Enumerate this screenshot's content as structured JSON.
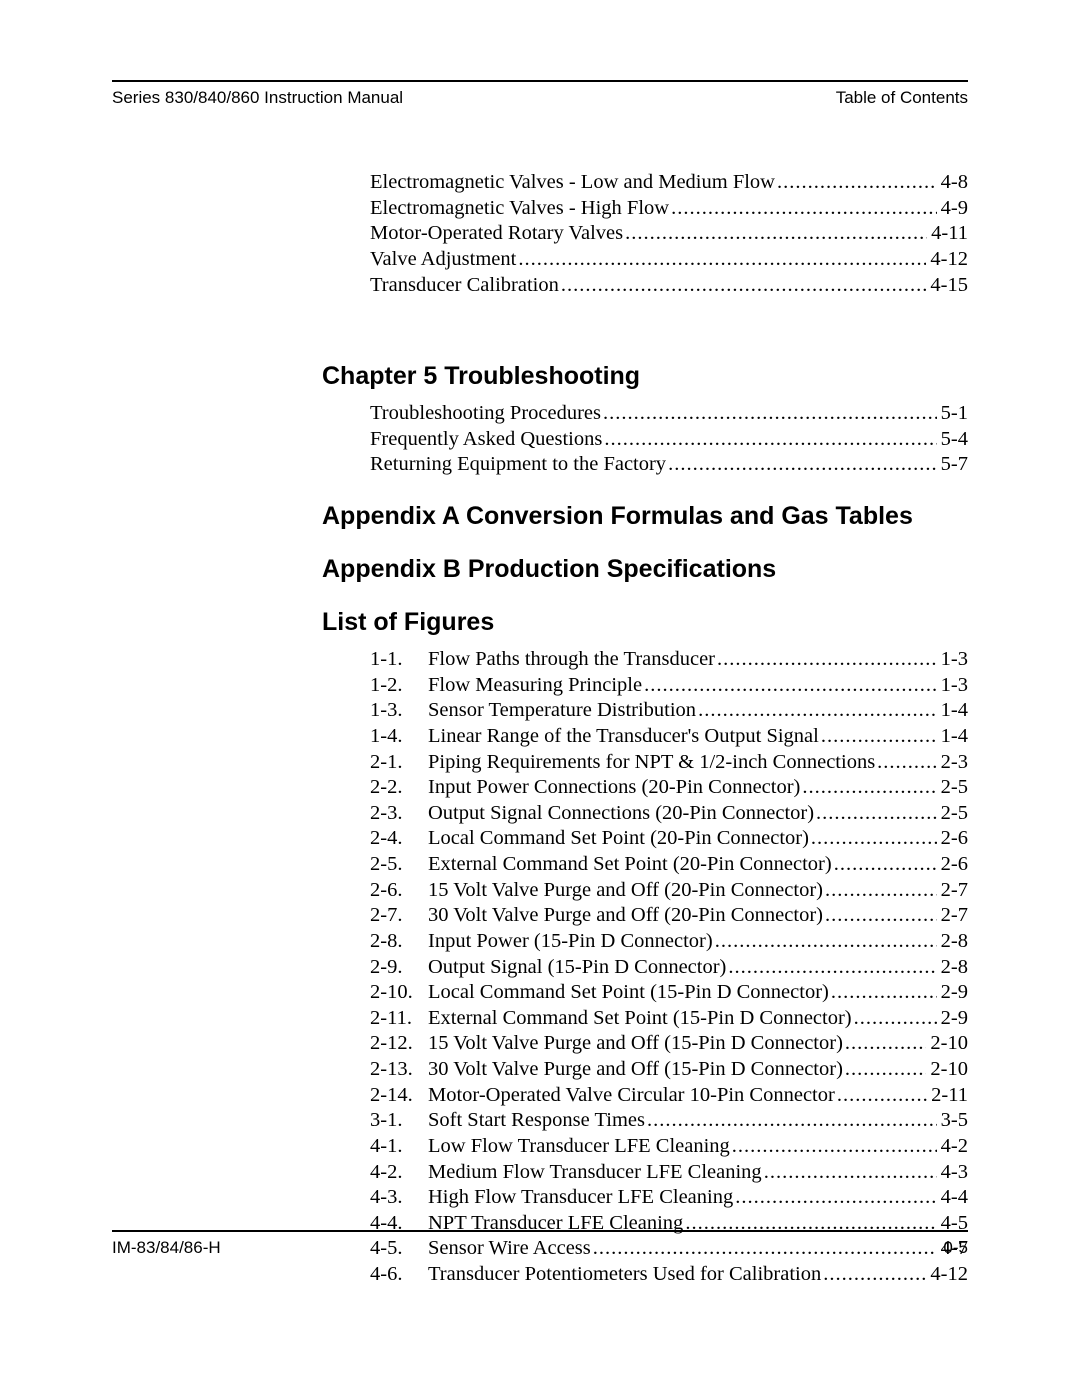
{
  "header": {
    "left": "Series 830/840/860 Instruction Manual",
    "right": "Table of Contents"
  },
  "footer": {
    "left": "IM-83/84/86-H",
    "right": "0-5"
  },
  "topEntries": [
    {
      "label": "Electromagnetic Valves - Low and Medium Flow",
      "page": "4-8"
    },
    {
      "label": "Electromagnetic Valves - High Flow",
      "page": "4-9"
    },
    {
      "label": "Motor-Operated Rotary Valves",
      "page": "4-11"
    },
    {
      "label": "Valve Adjustment",
      "page": "4-12"
    },
    {
      "label": "Transducer Calibration",
      "page": "4-15"
    }
  ],
  "chapter5": {
    "title": "Chapter 5  Troubleshooting",
    "entries": [
      {
        "label": "Troubleshooting Procedures",
        "page": "5-1"
      },
      {
        "label": "Frequently Asked Questions",
        "page": "5-4"
      },
      {
        "label": "Returning Equipment to the Factory",
        "page": "5-7"
      }
    ]
  },
  "appendixA": "Appendix A  Conversion Formulas and Gas Tables",
  "appendixB": "Appendix B  Production Specifications",
  "listOfFigures": {
    "title": "List of Figures",
    "entries": [
      {
        "num": "1-1.",
        "label": "Flow Paths through the Transducer",
        "page": "1-3"
      },
      {
        "num": "1-2.",
        "label": "Flow Measuring Principle",
        "page": "1-3"
      },
      {
        "num": "1-3.",
        "label": "Sensor Temperature Distribution",
        "page": "1-4"
      },
      {
        "num": "1-4.",
        "label": "Linear Range of the Transducer's Output Signal",
        "page": "1-4"
      },
      {
        "num": "2-1.",
        "label": "Piping Requirements for NPT & 1/2-inch Connections",
        "page": "2-3"
      },
      {
        "num": "2-2.",
        "label": "Input Power Connections (20-Pin Connector)",
        "page": "2-5"
      },
      {
        "num": "2-3.",
        "label": "Output Signal Connections (20-Pin Connector)",
        "page": "2-5"
      },
      {
        "num": "2-4.",
        "label": "Local Command Set Point (20-Pin Connector)",
        "page": "2-6"
      },
      {
        "num": "2-5.",
        "label": "External Command Set Point (20-Pin Connector)",
        "page": "2-6"
      },
      {
        "num": "2-6.",
        "label": "15 Volt Valve Purge and Off (20-Pin Connector)",
        "page": "2-7"
      },
      {
        "num": "2-7.",
        "label": "30 Volt Valve Purge and Off (20-Pin Connector)",
        "page": "2-7"
      },
      {
        "num": "2-8.",
        "label": "Input Power (15-Pin D Connector)",
        "page": "2-8"
      },
      {
        "num": "2-9.",
        "label": "Output Signal (15-Pin D Connector)",
        "page": "2-8"
      },
      {
        "num": "2-10.",
        "label": "Local Command Set Point (15-Pin D Connector)",
        "page": "2-9"
      },
      {
        "num": "2-11.",
        "label": "External Command Set Point (15-Pin D Connector)",
        "page": "2-9"
      },
      {
        "num": "2-12.",
        "label": "15 Volt Valve Purge and Off (15-Pin D Connector)",
        "page": "2-10"
      },
      {
        "num": "2-13.",
        "label": "30 Volt Valve Purge and Off (15-Pin D Connector)",
        "page": "2-10"
      },
      {
        "num": "2-14.",
        "label": "Motor-Operated Valve Circular 10-Pin Connector",
        "page": "2-11"
      },
      {
        "num": "3-1.",
        "label": "Soft Start Response Times",
        "page": "3-5"
      },
      {
        "num": "4-1.",
        "label": "Low Flow Transducer LFE Cleaning",
        "page": "4-2"
      },
      {
        "num": "4-2.",
        "label": "Medium Flow Transducer LFE Cleaning",
        "page": "4-3"
      },
      {
        "num": "4-3.",
        "label": "High Flow Transducer LFE Cleaning",
        "page": "4-4"
      },
      {
        "num": "4-4.",
        "label": "NPT Transducer LFE Cleaning",
        "page": "4-5"
      },
      {
        "num": "4-5.",
        "label": "Sensor Wire Access",
        "page": "4-7"
      },
      {
        "num": "4-6.",
        "label": "Transducer Potentiometers Used for Calibration",
        "page": "4-12"
      }
    ]
  }
}
